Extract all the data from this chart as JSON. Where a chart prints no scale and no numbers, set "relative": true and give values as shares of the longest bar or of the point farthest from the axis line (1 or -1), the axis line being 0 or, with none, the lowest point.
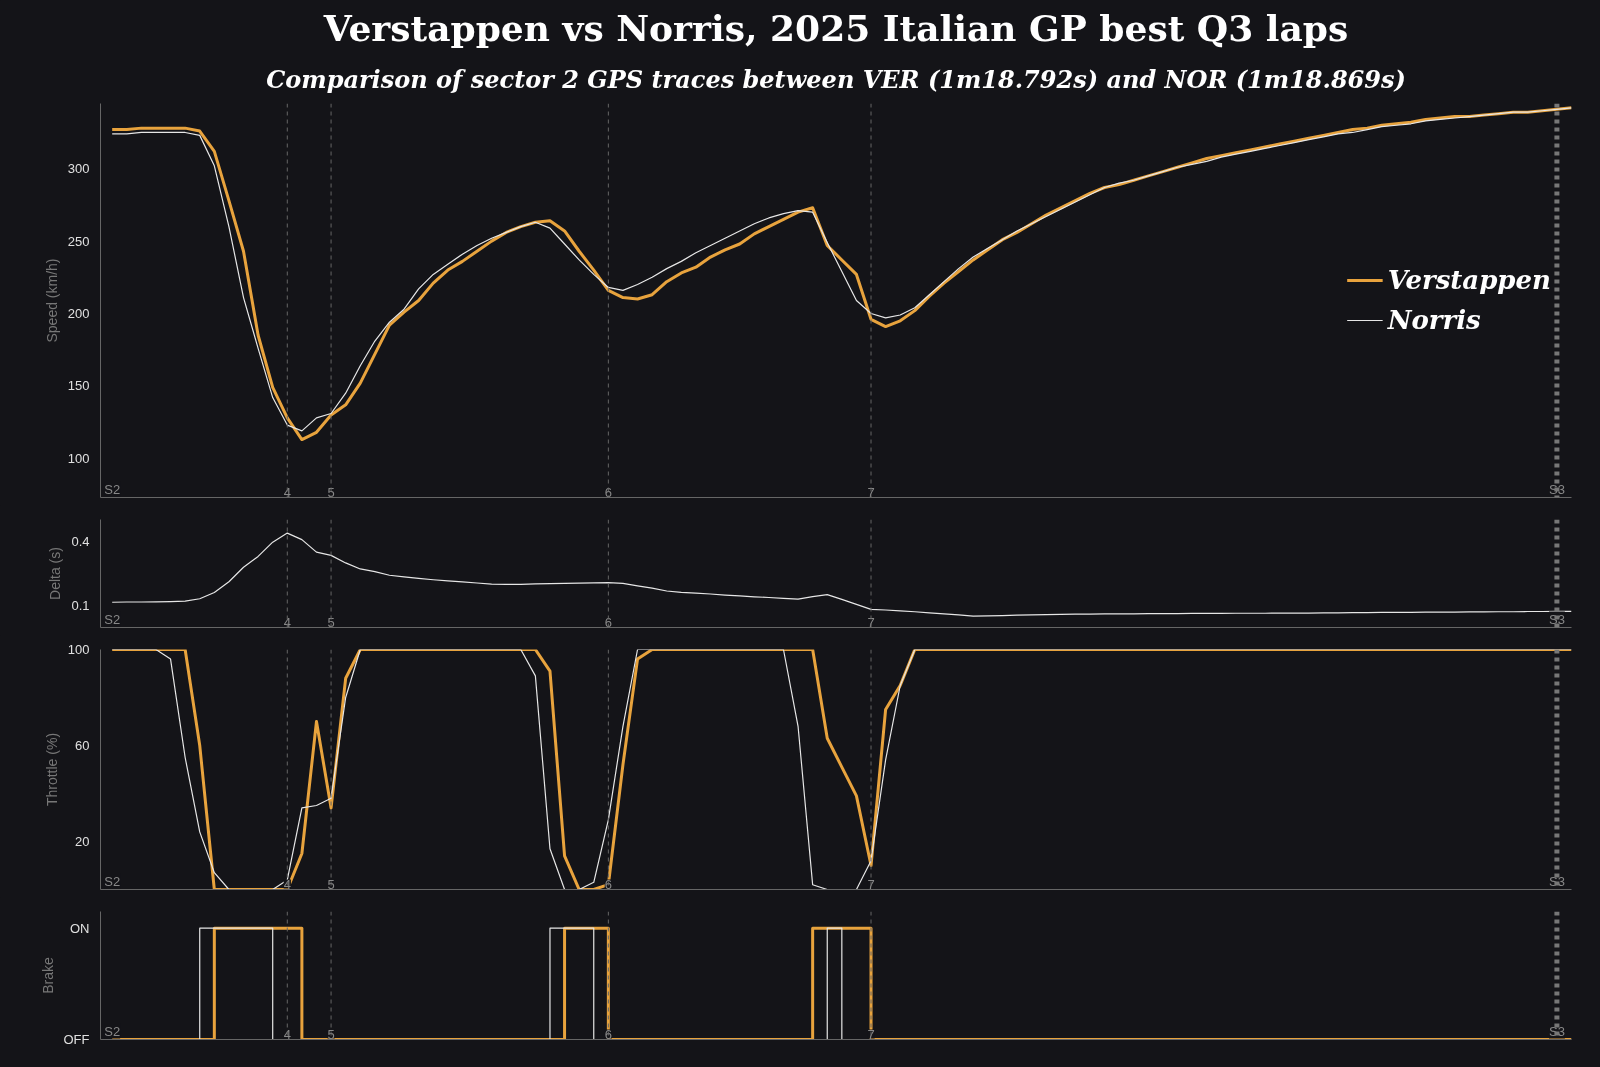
{
  "chart_data": [
    {
      "type": "line",
      "title": "Verstappen vs Norris, 2025 Italian GP best Q3 laps",
      "subtitle": "Comparison of sector 2 GPS traces between VER (1m18.792s) and NOR (1m18.869s)",
      "ylabel": "Speed (km/h)",
      "ylim": [
        73,
        345
      ],
      "yticks": [
        100,
        150,
        200,
        250,
        300
      ],
      "grid": false,
      "legend": "right",
      "categories": [
        "S2",
        null,
        null,
        null,
        null,
        null,
        null,
        null,
        null,
        null,
        null,
        null,
        "4",
        null,
        null,
        "5",
        null,
        null,
        null,
        null,
        null,
        null,
        null,
        null,
        null,
        null,
        null,
        null,
        null,
        null,
        null,
        null,
        null,
        null,
        "6",
        null,
        null,
        null,
        null,
        null,
        null,
        null,
        null,
        null,
        null,
        null,
        null,
        null,
        null,
        null,
        null,
        null,
        "7",
        null,
        null,
        null,
        null,
        null,
        null,
        null,
        null,
        null,
        null,
        null,
        null,
        null,
        null,
        null,
        null,
        null,
        null,
        null,
        null,
        null,
        null,
        null,
        null,
        null,
        null,
        null,
        null,
        null,
        null,
        null,
        null,
        null,
        null,
        null,
        null,
        null,
        null,
        null,
        null,
        null,
        null,
        null,
        null,
        null,
        null,
        "S3",
        null
      ],
      "series": [
        {
          "name": "Verstappen",
          "color": "#e8a33d",
          "values": [
            327,
            327,
            328,
            328,
            328,
            328,
            326,
            312,
            278,
            243,
            185,
            149,
            128,
            113,
            118,
            130,
            137,
            152,
            172,
            192,
            201,
            209,
            221,
            230,
            236,
            243,
            250,
            256,
            260,
            263,
            264,
            257,
            243,
            230,
            216,
            211,
            210,
            213,
            222,
            228,
            232,
            239,
            244,
            248,
            255,
            260,
            265,
            270,
            273,
            247,
            237,
            227,
            196,
            191,
            195,
            202,
            212,
            221,
            229,
            237,
            244,
            251,
            256,
            262,
            268,
            273,
            278,
            283,
            287,
            289,
            292,
            295,
            298,
            301,
            304,
            307,
            309,
            311,
            313,
            315,
            317,
            319,
            321,
            323,
            325,
            327,
            328,
            330,
            331,
            332,
            334,
            335,
            336,
            336,
            337,
            338,
            339,
            339,
            340,
            341,
            342
          ]
        },
        {
          "name": "Norris",
          "color": "#e6e6e6",
          "values": [
            324,
            324,
            325,
            325,
            325,
            325,
            323,
            302,
            260,
            211,
            176,
            142,
            123,
            119,
            128,
            131,
            145,
            164,
            181,
            194,
            203,
            217,
            227,
            234,
            241,
            247,
            252,
            256,
            260,
            263,
            259,
            248,
            237,
            227,
            218,
            216,
            220,
            225,
            231,
            236,
            242,
            247,
            252,
            257,
            262,
            266,
            269,
            271,
            270,
            249,
            229,
            209,
            200,
            197,
            199,
            204,
            213,
            222,
            231,
            239,
            245,
            251,
            257,
            262,
            267,
            272,
            277,
            282,
            287,
            290,
            292,
            295,
            298,
            301,
            303,
            305,
            308,
            310,
            312,
            314,
            316,
            318,
            320,
            322,
            324,
            325,
            327,
            329,
            330,
            331,
            333,
            334,
            335,
            336,
            337,
            338,
            339,
            339,
            340,
            341,
            342
          ]
        }
      ],
      "ref_lines": [
        {
          "axis": "x",
          "value": "4",
          "line_style": "dashed",
          "color": "#666666"
        },
        {
          "axis": "x",
          "value": "5",
          "line_style": "dashed",
          "color": "#666666"
        },
        {
          "axis": "x",
          "value": "6",
          "line_style": "dashed",
          "color": "#666666"
        },
        {
          "axis": "x",
          "value": "7",
          "line_style": "dashed",
          "color": "#666666"
        },
        {
          "axis": "x",
          "value": "S3",
          "line_style": "dotted",
          "color": "#777777"
        }
      ]
    },
    {
      "type": "line",
      "ylabel": "Delta (s)",
      "ylim": [
        0,
        0.5
      ],
      "yticks": [
        0.1,
        0.4
      ],
      "grid": false,
      "categories": [
        "S2",
        null,
        null,
        null,
        null,
        null,
        null,
        null,
        null,
        null,
        null,
        null,
        "4",
        null,
        null,
        "5",
        null,
        null,
        null,
        null,
        null,
        null,
        null,
        null,
        null,
        null,
        null,
        null,
        null,
        null,
        null,
        null,
        null,
        null,
        "6",
        null,
        null,
        null,
        null,
        null,
        null,
        null,
        null,
        null,
        null,
        null,
        null,
        null,
        null,
        null,
        null,
        null,
        "7",
        null,
        null,
        null,
        null,
        null,
        null,
        null,
        null,
        null,
        null,
        null,
        null,
        null,
        null,
        null,
        null,
        null,
        null,
        null,
        null,
        null,
        null,
        null,
        null,
        null,
        null,
        null,
        null,
        null,
        null,
        null,
        null,
        null,
        null,
        null,
        null,
        null,
        null,
        null,
        null,
        null,
        null,
        null,
        null,
        null,
        null,
        "S3",
        null
      ],
      "series": [
        {
          "color": "#e6e6e6",
          "values": [
            0.117,
            0.118,
            0.118,
            0.119,
            0.12,
            0.122,
            0.133,
            0.162,
            0.212,
            0.279,
            0.329,
            0.395,
            0.437,
            0.407,
            0.349,
            0.334,
            0.299,
            0.271,
            0.259,
            0.242,
            0.234,
            0.227,
            0.221,
            0.216,
            0.211,
            0.206,
            0.201,
            0.2,
            0.2,
            0.202,
            0.203,
            0.204,
            0.205,
            0.207,
            0.208,
            0.204,
            0.193,
            0.182,
            0.169,
            0.163,
            0.159,
            0.155,
            0.15,
            0.146,
            0.142,
            0.139,
            0.135,
            0.131,
            0.143,
            0.152,
            0.13,
            0.107,
            0.084,
            0.081,
            0.077,
            0.073,
            0.068,
            0.063,
            0.058,
            0.053,
            0.054,
            0.055,
            0.057,
            0.058,
            0.06,
            0.061,
            0.062,
            0.062,
            0.063,
            0.063,
            0.063,
            0.064,
            0.064,
            0.064,
            0.065,
            0.065,
            0.065,
            0.066,
            0.066,
            0.066,
            0.067,
            0.067,
            0.067,
            0.068,
            0.068,
            0.069,
            0.069,
            0.07,
            0.07,
            0.07,
            0.071,
            0.071,
            0.071,
            0.072,
            0.072,
            0.073,
            0.073,
            0.074,
            0.074,
            0.075,
            0.075
          ]
        }
      ],
      "ref_lines": [
        {
          "axis": "x",
          "value": "4",
          "line_style": "dashed",
          "color": "#666666"
        },
        {
          "axis": "x",
          "value": "5",
          "line_style": "dashed",
          "color": "#666666"
        },
        {
          "axis": "x",
          "value": "6",
          "line_style": "dashed",
          "color": "#666666"
        },
        {
          "axis": "x",
          "value": "7",
          "line_style": "dashed",
          "color": "#666666"
        },
        {
          "axis": "x",
          "value": "S3",
          "line_style": "dotted",
          "color": "#777777"
        }
      ]
    },
    {
      "type": "line",
      "ylabel": "Throttle (%)",
      "ylim": [
        0,
        100
      ],
      "yticks": [
        20,
        60,
        100
      ],
      "grid": false,
      "categories": [
        "S2",
        null,
        null,
        null,
        null,
        null,
        null,
        null,
        null,
        null,
        null,
        null,
        "4",
        null,
        null,
        "5",
        null,
        null,
        null,
        null,
        null,
        null,
        null,
        null,
        null,
        null,
        null,
        null,
        null,
        null,
        null,
        null,
        null,
        null,
        "6",
        null,
        null,
        null,
        null,
        null,
        null,
        null,
        null,
        null,
        null,
        null,
        null,
        null,
        null,
        null,
        null,
        null,
        "7",
        null,
        null,
        null,
        null,
        null,
        null,
        null,
        null,
        null,
        null,
        null,
        null,
        null,
        null,
        null,
        null,
        null,
        null,
        null,
        null,
        null,
        null,
        null,
        null,
        null,
        null,
        null,
        null,
        null,
        null,
        null,
        null,
        null,
        null,
        null,
        null,
        null,
        null,
        null,
        null,
        null,
        null,
        null,
        null,
        null,
        null,
        "S3",
        null
      ],
      "series": [
        {
          "color": "#e8a33d",
          "values": [
            100,
            100,
            100,
            100,
            100,
            100,
            60,
            0,
            0,
            0,
            0,
            0,
            0,
            15,
            70,
            34,
            88,
            100,
            100,
            100,
            100,
            100,
            100,
            100,
            100,
            100,
            100,
            100,
            100,
            100,
            91,
            14,
            0,
            0,
            2,
            52,
            96,
            100,
            100,
            100,
            100,
            100,
            100,
            100,
            100,
            100,
            100,
            100,
            100,
            63,
            51,
            39,
            10,
            75,
            85,
            100,
            100,
            100,
            100,
            100,
            100,
            100,
            100,
            100,
            100,
            100,
            100,
            100,
            100,
            100,
            100,
            100,
            100,
            100,
            100,
            100,
            100,
            100,
            100,
            100,
            100,
            100,
            100,
            100,
            100,
            100,
            100,
            100,
            100,
            100,
            100,
            100,
            100,
            100,
            100,
            100,
            100,
            100,
            100,
            100,
            100
          ]
        },
        {
          "color": "#e6e6e6",
          "values": [
            100,
            100,
            100,
            100,
            96,
            55,
            24,
            7,
            0,
            0,
            0,
            0,
            4,
            34,
            35,
            38,
            80,
            100,
            100,
            100,
            100,
            100,
            100,
            100,
            100,
            100,
            100,
            100,
            100,
            89,
            17,
            0,
            0,
            3,
            29,
            68,
            100,
            100,
            100,
            100,
            100,
            100,
            100,
            100,
            100,
            100,
            100,
            68,
            2,
            0,
            0,
            0,
            12,
            54,
            85,
            100,
            100,
            100,
            100,
            100,
            100,
            100,
            100,
            100,
            100,
            100,
            100,
            100,
            100,
            100,
            100,
            100,
            100,
            100,
            100,
            100,
            100,
            100,
            100,
            100,
            100,
            100,
            100,
            100,
            100,
            100,
            100,
            100,
            100,
            100,
            100,
            100,
            100,
            100,
            100,
            100,
            100,
            100,
            100,
            100,
            100
          ]
        }
      ],
      "ref_lines": [
        {
          "axis": "x",
          "value": "4",
          "line_style": "dashed",
          "color": "#666666"
        },
        {
          "axis": "x",
          "value": "5",
          "line_style": "dashed",
          "color": "#666666"
        },
        {
          "axis": "x",
          "value": "6",
          "line_style": "dashed",
          "color": "#666666"
        },
        {
          "axis": "x",
          "value": "7",
          "line_style": "dashed",
          "color": "#666666"
        },
        {
          "axis": "x",
          "value": "S3",
          "line_style": "dotted",
          "color": "#777777"
        }
      ]
    },
    {
      "type": "step",
      "ylabel": "Brake",
      "relative": true,
      "annotations": [
        "ON",
        "OFF"
      ],
      "grid": false,
      "categories": [
        "S2",
        null,
        null,
        null,
        null,
        null,
        null,
        null,
        null,
        null,
        null,
        null,
        "4",
        null,
        null,
        "5",
        null,
        null,
        null,
        null,
        null,
        null,
        null,
        null,
        null,
        null,
        null,
        null,
        null,
        null,
        null,
        null,
        null,
        null,
        "6",
        null,
        null,
        null,
        null,
        null,
        null,
        null,
        null,
        null,
        null,
        null,
        null,
        null,
        null,
        null,
        null,
        null,
        "7",
        null,
        null,
        null,
        null,
        null,
        null,
        null,
        null,
        null,
        null,
        null,
        null,
        null,
        null,
        null,
        null,
        null,
        null,
        null,
        null,
        null,
        null,
        null,
        null,
        null,
        null,
        null,
        null,
        null,
        null,
        null,
        null,
        null,
        null,
        null,
        null,
        null,
        null,
        null,
        null,
        null,
        null,
        null,
        null,
        null,
        null,
        "S3",
        null
      ],
      "series": [
        {
          "color": "#e8a33d",
          "values": [
            0,
            0,
            0,
            0,
            0,
            0,
            0,
            1,
            1,
            1,
            1,
            1,
            1,
            0,
            0,
            0,
            0,
            0,
            0,
            0,
            0,
            0,
            0,
            0,
            0,
            0,
            0,
            0,
            0,
            0,
            0,
            1,
            1,
            1,
            0,
            0,
            0,
            0,
            0,
            0,
            0,
            0,
            0,
            0,
            0,
            0,
            0,
            0,
            1,
            1,
            1,
            1,
            0,
            0,
            0,
            0,
            0,
            0,
            0,
            0,
            0,
            0,
            0,
            0,
            0,
            0,
            0,
            0,
            0,
            0,
            0,
            0,
            0,
            0,
            0,
            0,
            0,
            0,
            0,
            0,
            0,
            0,
            0,
            0,
            0,
            0,
            0,
            0,
            0,
            0,
            0,
            0,
            0,
            0,
            0,
            0,
            0,
            0,
            0,
            0,
            0
          ]
        },
        {
          "color": "#e6e6e6",
          "values": [
            null,
            null,
            null,
            null,
            null,
            0,
            1,
            1,
            1,
            1,
            1,
            0,
            null,
            null,
            null,
            null,
            null,
            null,
            null,
            null,
            null,
            null,
            null,
            null,
            null,
            null,
            null,
            null,
            null,
            0,
            1,
            1,
            1,
            0,
            null,
            null,
            null,
            null,
            null,
            null,
            null,
            null,
            null,
            null,
            null,
            null,
            null,
            null,
            0,
            1,
            0,
            null,
            null,
            null,
            null,
            null,
            null,
            null,
            null,
            null,
            null,
            null,
            null,
            null,
            null,
            null,
            null,
            null,
            null,
            null,
            null,
            null,
            null,
            null,
            null,
            null,
            null,
            null,
            null,
            null,
            null,
            null,
            null,
            null,
            null,
            null,
            null,
            null,
            null,
            null,
            null,
            null,
            null,
            null,
            null,
            null,
            null,
            null,
            null,
            null,
            null
          ]
        }
      ],
      "ref_lines": [
        {
          "axis": "x",
          "value": "4",
          "line_style": "dashed",
          "color": "#666666"
        },
        {
          "axis": "x",
          "value": "5",
          "line_style": "dashed",
          "color": "#666666"
        },
        {
          "axis": "x",
          "value": "6",
          "line_style": "dashed",
          "color": "#666666"
        },
        {
          "axis": "x",
          "value": "7",
          "line_style": "dashed",
          "color": "#666666"
        },
        {
          "axis": "x",
          "value": "S3",
          "line_style": "dotted",
          "color": "#777777"
        }
      ]
    }
  ]
}
